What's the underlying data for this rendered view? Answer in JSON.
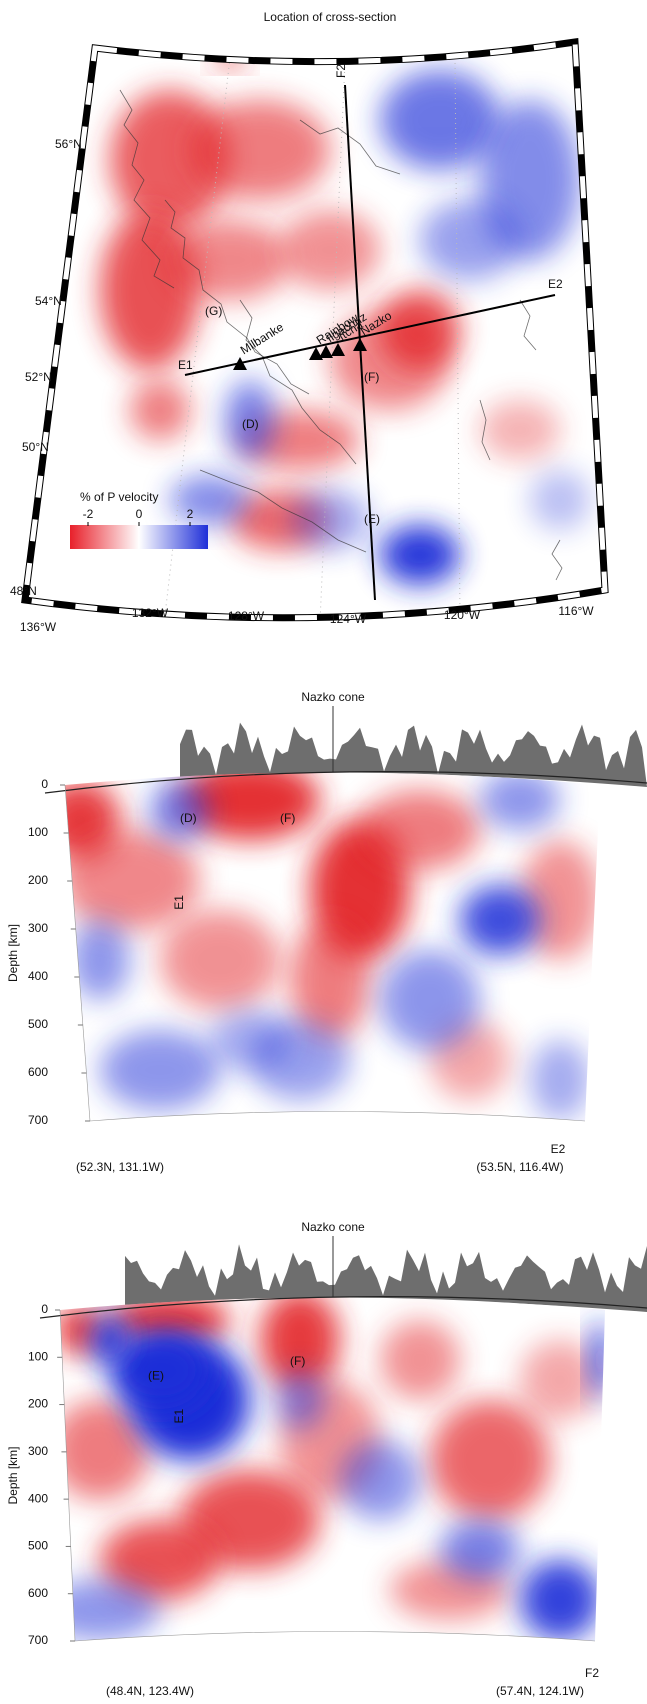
{
  "map": {
    "title": "Location of cross-section",
    "lat_labels": [
      "56°N",
      "54°N",
      "52°N",
      "50°N",
      "48°N"
    ],
    "lon_labels": [
      "136°W",
      "132°W",
      "128°W",
      "124°W",
      "120°W",
      "116°W"
    ],
    "colorbar": {
      "title": "% of  P velocity",
      "ticks": [
        -2,
        0,
        2
      ]
    },
    "profile_labels": [
      "E1",
      "E2",
      "F2"
    ],
    "volcanoes": [
      "Milbanke",
      "Rainbow",
      "Ilgachuz",
      "Itcha",
      "Nazko"
    ],
    "anomaly_labels": [
      "(G)",
      "(D)",
      "(F)",
      "(E)"
    ]
  },
  "sections": [
    {
      "title": "Nazko cone",
      "depth_label": "Depth [km]",
      "depth_ticks": [
        0,
        100,
        200,
        300,
        400,
        500,
        600,
        700
      ],
      "start_label": "(52.3N, 131.1W)",
      "end_name": "E2",
      "end_label": "(53.5N, 116.4W)",
      "annotations": [
        "(D)",
        "(F)",
        "E1"
      ]
    },
    {
      "title": "Nazko cone",
      "depth_label": "Depth [km]",
      "depth_ticks": [
        0,
        100,
        200,
        300,
        400,
        500,
        600,
        700
      ],
      "start_label": "(48.4N, 123.4W)",
      "end_name": "F2",
      "end_label": "(57.4N, 124.1W)",
      "annotations": [
        "(E)",
        "(F)",
        "E1"
      ]
    }
  ]
}
